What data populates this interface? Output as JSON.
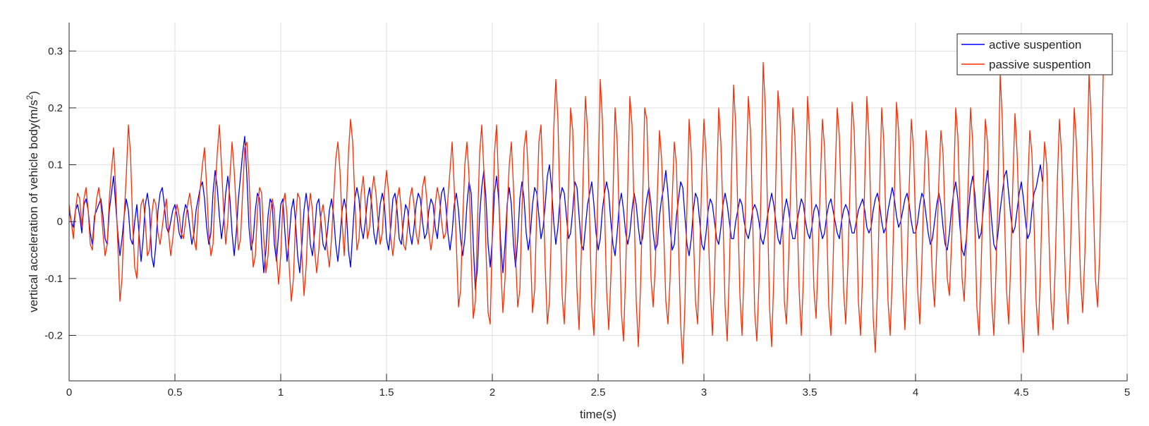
{
  "chart_data": {
    "type": "line",
    "title": "",
    "xlabel": "time(s)",
    "ylabel_main": "vertical acceleration of vehicle body(m/s",
    "ylabel_sup": "2",
    "ylabel_close": ")",
    "xlim": [
      0,
      5
    ],
    "ylim": [
      -0.28,
      0.35
    ],
    "xticks": [
      0,
      0.5,
      1,
      1.5,
      2,
      2.5,
      3,
      3.5,
      4,
      4.5,
      5
    ],
    "xtick_labels": [
      "0",
      "0.5",
      "1",
      "1.5",
      "2",
      "2.5",
      "3",
      "3.5",
      "4",
      "4.5",
      "5"
    ],
    "yticks": [
      -0.2,
      -0.1,
      0,
      0.1,
      0.2,
      0.3
    ],
    "ytick_labels": [
      "-0.2",
      "-0.1",
      "0",
      "0.1",
      "0.2",
      "0.3"
    ],
    "grid": true,
    "legend_position": "top-right",
    "sample_step": 0.01,
    "series": [
      {
        "name": "active suspention",
        "color": "#0000ff",
        "values": [
          0.02,
          0.0,
          -0.01,
          0.02,
          0.03,
          0.01,
          -0.02,
          0.03,
          0.04,
          0.02,
          -0.02,
          -0.04,
          0.01,
          0.02,
          0.03,
          0.04,
          0.01,
          -0.03,
          -0.04,
          0.02,
          0.05,
          0.08,
          0.03,
          -0.02,
          -0.06,
          -0.03,
          0.01,
          0.04,
          0.02,
          -0.03,
          -0.04,
          0.0,
          0.03,
          -0.02,
          -0.07,
          -0.03,
          0.03,
          0.05,
          0.02,
          -0.06,
          -0.08,
          -0.04,
          0.02,
          0.05,
          0.06,
          0.03,
          -0.01,
          -0.02,
          0.0,
          0.02,
          0.03,
          0.01,
          -0.02,
          -0.03,
          0.01,
          0.03,
          0.02,
          -0.01,
          -0.04,
          -0.02,
          0.02,
          0.04,
          0.06,
          0.07,
          0.04,
          -0.01,
          -0.04,
          -0.02,
          0.05,
          0.09,
          0.06,
          0.01,
          -0.03,
          0.0,
          0.05,
          0.08,
          0.04,
          -0.02,
          -0.06,
          -0.02,
          0.04,
          0.08,
          0.12,
          0.15,
          0.08,
          -0.01,
          -0.05,
          -0.03,
          0.02,
          0.05,
          0.04,
          -0.04,
          -0.09,
          -0.05,
          0.01,
          0.04,
          0.03,
          -0.04,
          -0.07,
          -0.02,
          0.03,
          0.04,
          -0.02,
          -0.07,
          -0.03,
          0.02,
          0.04,
          0.0,
          -0.06,
          -0.09,
          -0.04,
          0.02,
          0.05,
          0.02,
          -0.04,
          -0.06,
          -0.02,
          0.03,
          0.04,
          0.0,
          -0.04,
          -0.05,
          -0.02,
          0.02,
          0.04,
          0.01,
          -0.04,
          -0.07,
          -0.03,
          0.02,
          0.04,
          0.02,
          -0.05,
          -0.08,
          -0.02,
          0.04,
          0.06,
          0.04,
          -0.01,
          -0.03,
          0.0,
          0.04,
          0.06,
          0.03,
          -0.02,
          -0.04,
          -0.01,
          0.03,
          0.05,
          0.03,
          -0.03,
          -0.05,
          -0.01,
          0.04,
          0.05,
          0.02,
          -0.03,
          -0.04,
          0.0,
          0.03,
          0.02,
          -0.02,
          -0.04,
          -0.01,
          0.03,
          0.05,
          0.04,
          0.0,
          -0.03,
          -0.02,
          0.02,
          0.04,
          0.03,
          -0.01,
          -0.03,
          0.01,
          0.05,
          0.06,
          0.03,
          -0.02,
          -0.05,
          -0.02,
          0.03,
          0.05,
          0.02,
          -0.03,
          -0.06,
          -0.03,
          0.03,
          0.07,
          0.05,
          -0.04,
          -0.12,
          -0.08,
          0.01,
          0.06,
          0.09,
          0.04,
          -0.04,
          -0.08,
          -0.03,
          0.05,
          0.08,
          0.04,
          -0.04,
          -0.09,
          -0.04,
          0.03,
          0.06,
          0.03,
          -0.04,
          -0.08,
          -0.03,
          0.04,
          0.07,
          0.04,
          -0.02,
          -0.05,
          -0.02,
          0.03,
          0.06,
          0.05,
          0.01,
          -0.03,
          -0.01,
          0.03,
          0.08,
          0.1,
          0.06,
          0.0,
          -0.04,
          -0.01,
          0.04,
          0.06,
          0.05,
          0.01,
          -0.03,
          -0.02,
          0.02,
          0.07,
          0.06,
          0.01,
          -0.04,
          -0.05,
          -0.01,
          0.03,
          0.05,
          0.07,
          0.03,
          -0.02,
          -0.05,
          -0.03,
          0.02,
          0.05,
          0.07,
          0.05,
          0.0,
          -0.04,
          -0.06,
          -0.02,
          0.03,
          0.05,
          0.02,
          -0.02,
          -0.04,
          -0.02,
          0.02,
          0.05,
          0.03,
          -0.01,
          -0.04,
          -0.03,
          0.01,
          0.04,
          0.06,
          0.03,
          -0.02,
          -0.05,
          -0.04,
          0.01,
          0.04,
          0.06,
          0.09,
          0.05,
          -0.01,
          -0.05,
          -0.04,
          0.01,
          0.04,
          0.07,
          0.06,
          0.01,
          -0.04,
          -0.06,
          -0.03,
          0.02,
          0.05,
          0.04,
          0.0,
          -0.04,
          -0.05,
          -0.02,
          0.02,
          0.04,
          0.03,
          0.0,
          -0.03,
          -0.04,
          -0.01,
          0.03,
          0.05,
          0.03,
          0.0,
          -0.03,
          -0.03,
          0.0,
          0.02,
          0.04,
          0.03,
          0.0,
          -0.02,
          -0.03,
          -0.01,
          0.02,
          0.03,
          0.02,
          0.0,
          -0.03,
          -0.04,
          -0.02,
          0.01,
          0.03,
          0.05,
          0.03,
          0.0,
          -0.03,
          -0.04,
          -0.01,
          0.02,
          0.04,
          0.02,
          -0.01,
          -0.03,
          -0.03,
          0.0,
          0.02,
          0.04,
          0.03,
          0.0,
          -0.02,
          -0.03,
          -0.01,
          0.02,
          0.03,
          0.02,
          -0.01,
          -0.03,
          -0.02,
          0.01,
          0.03,
          0.04,
          0.02,
          0.0,
          -0.02,
          -0.03,
          0.0,
          0.02,
          0.03,
          0.02,
          0.0,
          -0.02,
          -0.02,
          0.0,
          0.02,
          0.03,
          0.04,
          0.02,
          -0.01,
          -0.02,
          -0.01,
          0.02,
          0.04,
          0.05,
          0.03,
          0.0,
          -0.02,
          -0.01,
          0.02,
          0.04,
          0.06,
          0.04,
          0.01,
          -0.01,
          0.0,
          0.02,
          0.04,
          0.05,
          0.03,
          0.0,
          -0.02,
          -0.02,
          0.0,
          0.03,
          0.05,
          0.04,
          0.01,
          -0.02,
          -0.04,
          -0.03,
          0.0,
          0.03,
          0.05,
          0.03,
          -0.01,
          -0.04,
          -0.05,
          -0.02,
          0.02,
          0.05,
          0.07,
          0.04,
          -0.01,
          -0.05,
          -0.06,
          -0.03,
          0.02,
          0.06,
          0.08,
          0.05,
          0.0,
          -0.03,
          -0.02,
          0.02,
          0.06,
          0.09,
          0.05,
          0.0,
          -0.04,
          -0.05,
          -0.02,
          0.02,
          0.05,
          0.08,
          0.09,
          0.05,
          0.01,
          -0.02,
          -0.01,
          0.02,
          0.05,
          0.07,
          0.04,
          0.0,
          -0.03,
          -0.02,
          0.02,
          0.05,
          0.06,
          0.08,
          0.1,
          0.07
        ]
      },
      {
        "name": "passive suspention",
        "color": "#ff2a00",
        "values": [
          0.03,
          0.0,
          -0.03,
          0.02,
          0.05,
          0.04,
          -0.01,
          0.04,
          0.06,
          0.02,
          -0.04,
          -0.05,
          0.0,
          0.04,
          0.06,
          0.03,
          -0.02,
          -0.06,
          -0.04,
          0.04,
          0.09,
          0.13,
          0.06,
          -0.04,
          -0.14,
          -0.1,
          0.01,
          0.08,
          0.17,
          0.12,
          0.0,
          -0.08,
          -0.1,
          -0.02,
          0.03,
          0.04,
          0.0,
          -0.06,
          -0.05,
          0.01,
          0.04,
          0.03,
          -0.02,
          -0.04,
          -0.01,
          0.02,
          0.04,
          -0.02,
          -0.06,
          -0.03,
          0.01,
          0.03,
          0.01,
          -0.02,
          -0.03,
          0.0,
          0.03,
          0.05,
          0.02,
          -0.03,
          -0.05,
          0.02,
          0.06,
          0.1,
          0.13,
          0.06,
          -0.02,
          -0.06,
          -0.04,
          0.05,
          0.12,
          0.17,
          0.1,
          0.02,
          -0.04,
          0.0,
          0.08,
          0.14,
          0.09,
          0.02,
          -0.05,
          -0.03,
          0.05,
          0.13,
          0.14,
          0.08,
          -0.02,
          -0.08,
          -0.06,
          0.02,
          0.06,
          0.05,
          -0.03,
          -0.09,
          -0.06,
          0.01,
          0.04,
          0.02,
          -0.06,
          -0.11,
          -0.06,
          0.03,
          0.05,
          0.01,
          -0.08,
          -0.14,
          -0.1,
          0.0,
          0.05,
          0.04,
          -0.06,
          -0.13,
          -0.08,
          0.01,
          0.05,
          0.02,
          -0.05,
          -0.09,
          -0.05,
          0.01,
          0.03,
          0.0,
          -0.05,
          -0.08,
          -0.03,
          0.04,
          0.11,
          0.14,
          0.09,
          0.0,
          -0.06,
          0.02,
          0.12,
          0.18,
          0.14,
          0.04,
          -0.05,
          -0.03,
          0.05,
          0.08,
          0.03,
          -0.03,
          -0.01,
          0.05,
          0.08,
          0.05,
          0.0,
          -0.04,
          -0.02,
          0.05,
          0.09,
          0.05,
          -0.03,
          -0.06,
          -0.02,
          0.04,
          0.06,
          0.02,
          -0.04,
          -0.05,
          -0.01,
          0.04,
          0.06,
          0.03,
          -0.02,
          -0.04,
          0.0,
          0.06,
          0.08,
          0.04,
          -0.02,
          -0.05,
          -0.02,
          0.03,
          0.06,
          0.04,
          0.0,
          -0.03,
          -0.02,
          0.04,
          0.09,
          0.14,
          0.06,
          -0.04,
          -0.15,
          -0.12,
          0.0,
          0.1,
          0.14,
          0.08,
          -0.06,
          -0.17,
          -0.14,
          0.0,
          0.12,
          0.17,
          0.09,
          -0.05,
          -0.16,
          -0.18,
          -0.02,
          0.12,
          0.17,
          0.06,
          -0.08,
          -0.16,
          -0.1,
          0.02,
          0.1,
          0.14,
          0.06,
          -0.06,
          -0.15,
          -0.12,
          0.02,
          0.13,
          0.16,
          0.08,
          -0.05,
          -0.16,
          -0.12,
          0.02,
          0.14,
          0.17,
          0.06,
          -0.08,
          -0.18,
          -0.14,
          0.0,
          0.16,
          0.25,
          0.18,
          0.02,
          -0.13,
          -0.18,
          -0.08,
          0.06,
          0.2,
          0.16,
          0.02,
          -0.12,
          -0.19,
          -0.06,
          0.09,
          0.22,
          0.16,
          0.0,
          -0.15,
          -0.2,
          -0.08,
          0.07,
          0.25,
          0.18,
          0.03,
          -0.12,
          -0.19,
          -0.1,
          0.04,
          0.2,
          0.14,
          0.0,
          -0.16,
          -0.21,
          -0.09,
          0.06,
          0.22,
          0.17,
          0.02,
          -0.14,
          -0.22,
          -0.12,
          0.03,
          0.2,
          0.18,
          0.05,
          -0.1,
          -0.15,
          -0.08,
          0.05,
          0.16,
          0.11,
          -0.02,
          -0.14,
          -0.18,
          -0.1,
          0.04,
          0.14,
          0.1,
          -0.04,
          -0.18,
          -0.25,
          -0.15,
          0.03,
          0.18,
          0.12,
          -0.02,
          -0.14,
          -0.18,
          -0.06,
          0.08,
          0.18,
          0.12,
          -0.01,
          -0.12,
          -0.2,
          -0.1,
          0.06,
          0.2,
          0.14,
          0.01,
          -0.15,
          -0.21,
          -0.09,
          0.08,
          0.24,
          0.17,
          0.02,
          -0.13,
          -0.2,
          -0.08,
          0.09,
          0.22,
          0.16,
          0.01,
          -0.16,
          -0.21,
          -0.11,
          0.06,
          0.28,
          0.2,
          0.03,
          -0.15,
          -0.22,
          -0.1,
          0.08,
          0.23,
          0.18,
          0.03,
          -0.14,
          -0.18,
          -0.07,
          0.06,
          0.2,
          0.15,
          0.02,
          -0.12,
          -0.2,
          -0.1,
          0.07,
          0.22,
          0.15,
          0.01,
          -0.12,
          -0.17,
          -0.06,
          0.07,
          0.18,
          0.13,
          0.0,
          -0.15,
          -0.2,
          -0.08,
          0.08,
          0.2,
          0.15,
          0.02,
          -0.12,
          -0.18,
          -0.08,
          0.06,
          0.21,
          0.16,
          0.02,
          -0.14,
          -0.2,
          -0.09,
          0.07,
          0.22,
          0.15,
          0.0,
          -0.17,
          -0.23,
          -0.12,
          0.05,
          0.2,
          0.14,
          0.0,
          -0.14,
          -0.2,
          -0.1,
          0.05,
          0.21,
          0.16,
          0.02,
          -0.12,
          -0.19,
          -0.08,
          0.06,
          0.18,
          0.13,
          0.0,
          -0.12,
          -0.18,
          -0.07,
          0.06,
          0.16,
          0.11,
          0.0,
          -0.1,
          -0.15,
          -0.05,
          0.07,
          0.16,
          0.12,
          0.0,
          -0.1,
          -0.13,
          -0.04,
          0.06,
          0.2,
          0.15,
          0.02,
          -0.1,
          -0.14,
          -0.04,
          0.08,
          0.2,
          0.14,
          0.0,
          -0.15,
          -0.2,
          -0.08,
          0.06,
          0.18,
          0.14,
          0.0,
          -0.14,
          -0.2,
          -0.09,
          0.05,
          0.26,
          0.18,
          0.02,
          -0.12,
          -0.18,
          -0.07,
          0.07,
          0.19,
          0.12,
          0.0,
          -0.16,
          -0.23,
          -0.1,
          0.06,
          0.16,
          0.12,
          0.0,
          -0.14,
          -0.2,
          -0.09,
          0.06,
          0.14,
          0.1,
          -0.02,
          -0.14,
          -0.19,
          -0.08,
          0.07,
          0.18,
          0.12,
          0.0,
          -0.12,
          -0.18,
          -0.08,
          0.06,
          0.2,
          0.14,
          0.02,
          -0.1,
          -0.16,
          -0.06,
          0.1,
          0.26,
          0.18,
          0.04,
          -0.1,
          -0.15,
          -0.06,
          0.12,
          0.32
        ]
      }
    ]
  }
}
